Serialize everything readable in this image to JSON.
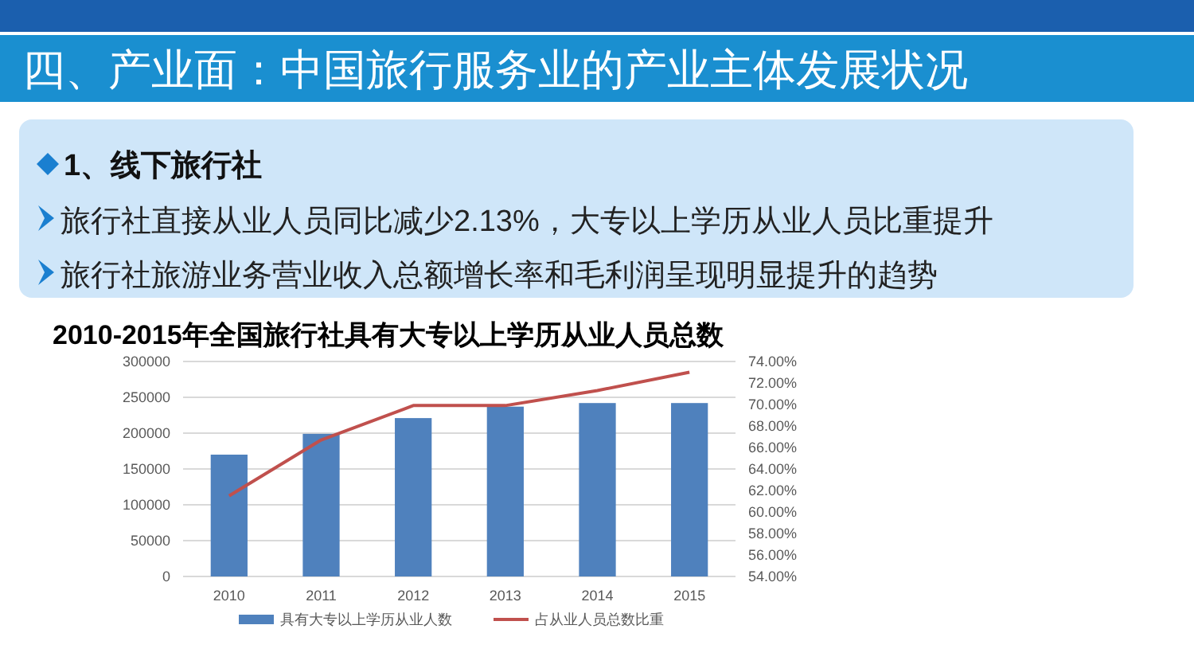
{
  "chart_data": {
    "type": "bar",
    "title": "2010-2015年全国旅行社具有大专以上学历从业人员总数",
    "annotations": [
      "四、产业面：中国旅行服务业的产业主体发展状况",
      "1、线下旅行社",
      "旅行社直接从业人员同比减少2.13%，大专以上学历从业人员比重提升",
      "旅行社旅游业务营业收入总额增长率和毛利润呈现明显提升的趋势"
    ],
    "categories": [
      "2010",
      "2011",
      "2012",
      "2013",
      "2014",
      "2015"
    ],
    "series": [
      {
        "name": "具有大专以上学历从业人数",
        "color": "#4f81bd",
        "values": [
          170000,
          199000,
          221000,
          237000,
          242000,
          242000
        ]
      },
      {
        "name": "占从业人员总数比重",
        "type": "line",
        "axis": "y2",
        "color": "#c0504d",
        "values": [
          61.5,
          66.7,
          69.9,
          69.9,
          71.3,
          73.0
        ]
      }
    ],
    "ylim": [
      0,
      300000
    ],
    "yticks": [
      0,
      50000,
      100000,
      150000,
      200000,
      250000,
      300000
    ],
    "y2lim": [
      54,
      74
    ],
    "y2ticks": [
      {
        "value": 54,
        "label": "54.00%"
      },
      {
        "value": 56,
        "label": "56.00%"
      },
      {
        "value": 58,
        "label": "58.00%"
      },
      {
        "value": 60,
        "label": "60.00%"
      },
      {
        "value": 62,
        "label": "62.00%"
      },
      {
        "value": 64,
        "label": "64.00%"
      },
      {
        "value": 66,
        "label": "66.00%"
      },
      {
        "value": 68,
        "label": "68.00%"
      },
      {
        "value": 70,
        "label": "70.00%"
      },
      {
        "value": 72,
        "label": "72.00%"
      },
      {
        "value": 74,
        "label": "74.00%"
      }
    ],
    "grid": "y",
    "legend": "bottom",
    "marker": "none",
    "line_style": "solid"
  }
}
